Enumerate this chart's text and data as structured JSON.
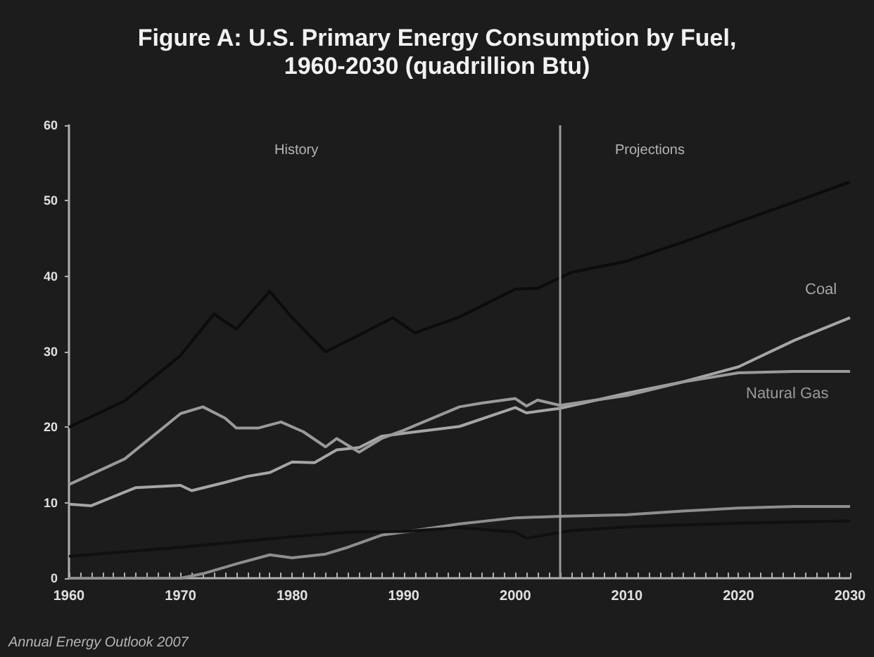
{
  "chart_data": {
    "type": "line",
    "title": "Figure A: U.S. Primary Energy Consumption by Fuel,\n1960-2030 (quadrillion Btu)",
    "xlim": [
      1960,
      2030
    ],
    "xticks": [
      1960,
      1970,
      1980,
      1990,
      2000,
      2010,
      2020,
      2030
    ],
    "ylim": [
      0,
      60
    ],
    "yticks": [
      0,
      10,
      20,
      30,
      40,
      50,
      60
    ],
    "grid": false,
    "legend": false,
    "marker": "none",
    "line_style": "solid",
    "series": [
      {
        "color": "#0c0c0c",
        "x": [
          1960,
          1965,
          1970,
          1973,
          1975,
          1978,
          1980,
          1983,
          1986,
          1989,
          1991,
          1995,
          2000,
          2002,
          2005,
          2010,
          2015,
          2020,
          2025,
          2030
        ],
        "values": [
          20,
          23.5,
          29.5,
          35,
          33,
          38,
          34.5,
          30,
          32.2,
          34.5,
          32.5,
          34.6,
          38.3,
          38.4,
          40.5,
          42,
          44.5,
          47.2,
          49.8,
          52.5
        ]
      },
      {
        "name": "Coal",
        "color": "#a6a6a6",
        "x": [
          1960,
          1962,
          1966,
          1970,
          1971,
          1974,
          1976,
          1978,
          1980,
          1982,
          1984,
          1986,
          1988,
          1990,
          1995,
          2000,
          2001,
          2004,
          2010,
          2015,
          2020,
          2025,
          2030
        ],
        "values": [
          9.8,
          9.6,
          12,
          12.3,
          11.6,
          12.7,
          13.5,
          14,
          15.4,
          15.3,
          17,
          17.3,
          18.8,
          19.2,
          20.1,
          22.6,
          21.9,
          22.5,
          24.5,
          26,
          28,
          31.5,
          34.5
        ]
      },
      {
        "name": "Natural Gas",
        "color": "#9a9a9a",
        "x": [
          1960,
          1965,
          1970,
          1972,
          1974,
          1975,
          1977,
          1979,
          1981,
          1983,
          1984,
          1986,
          1988,
          1990,
          1995,
          1997,
          2000,
          2001,
          2002,
          2004,
          2010,
          2015,
          2020,
          2025,
          2030
        ],
        "values": [
          12.4,
          15.8,
          21.8,
          22.7,
          21.2,
          19.9,
          19.9,
          20.7,
          19.4,
          17.4,
          18.5,
          16.7,
          18.5,
          19.6,
          22.7,
          23.2,
          23.8,
          22.8,
          23.6,
          22.9,
          24.2,
          26,
          27.2,
          27.4,
          27.4
        ]
      },
      {
        "color": "#8e8e8e",
        "x": [
          1960,
          1970,
          1972,
          1975,
          1978,
          1980,
          1983,
          1985,
          1988,
          1990,
          1995,
          2000,
          2004,
          2010,
          2015,
          2020,
          2025,
          2030
        ],
        "values": [
          0,
          0,
          0.6,
          1.9,
          3.1,
          2.7,
          3.2,
          4.1,
          5.7,
          6.1,
          7.2,
          8,
          8.2,
          8.4,
          8.9,
          9.3,
          9.5,
          9.5
        ]
      },
      {
        "color": "#101010",
        "x": [
          1960,
          1970,
          1980,
          1985,
          1990,
          1995,
          2000,
          2001,
          2005,
          2010,
          2020,
          2030
        ],
        "values": [
          2.9,
          4.1,
          5.5,
          6.1,
          6.2,
          6.7,
          6.1,
          5.3,
          6.3,
          6.8,
          7.3,
          7.6
        ]
      }
    ],
    "ref_lines": [
      {
        "axis": "x",
        "value": 2004,
        "color": "#9a9a9a"
      }
    ],
    "annotations": [
      "History",
      "Projections",
      "Annual Energy Outlook 2007"
    ]
  }
}
